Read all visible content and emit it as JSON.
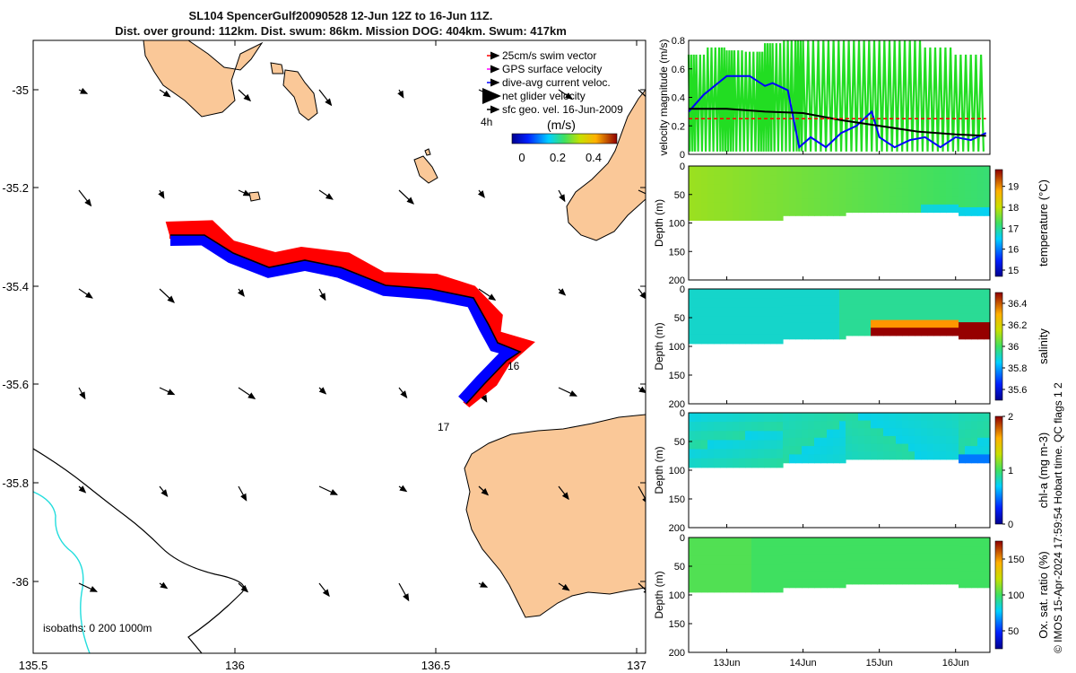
{
  "title": {
    "line1": "SL104 SpencerGulf20090528 12-Jun 12Z to 16-Jun 11Z.",
    "line2": "Dist. over ground: 112km. Dist. swum: 86km. Mission DOG: 404km. Swum: 417km"
  },
  "colors": {
    "land": "#fac898",
    "sea": "#ffffff",
    "track_red": "#ff0000",
    "track_blue": "#0000ff",
    "net_green": "#22dd22",
    "isobath_black": "#000000",
    "isobath_cyan": "#22dddd"
  },
  "map": {
    "xticks": [
      "135.5",
      "136",
      "136.5",
      "137"
    ],
    "yticks": [
      "-35",
      "-35.2",
      "-35.4",
      "-35.6",
      "-35.8",
      "-36"
    ],
    "legend": [
      {
        "label": "25cm/s swim vector",
        "color": "#ff0000"
      },
      {
        "label": "GPS surface velocity",
        "color": "#ff00ff"
      },
      {
        "label": "dive-avg current veloc.",
        "color": "#0000ff"
      },
      {
        "label": "net glider velocity",
        "color": "#22dd22"
      },
      {
        "label": "sfc geo. vel. 16-Jun-2009",
        "color": "#000000"
      }
    ],
    "scale_label": "4h",
    "colorbar_title": "(m/s)",
    "colorbar_ticks": [
      "0",
      "0.2",
      "0.4"
    ],
    "day_labels": [
      "16",
      "17"
    ],
    "isobaths_label": "isobaths: 0   200  1000m"
  },
  "chart_data": [
    {
      "type": "line",
      "title": "",
      "xlabel": "",
      "ylabel": "velocity magnitude (m/s)",
      "ylim": [
        0,
        0.8
      ],
      "yticks": [
        "0",
        "0.2",
        "0.4",
        "0.6",
        "0.8"
      ],
      "series": [
        {
          "name": "net glider velocity",
          "x": [
            12.5,
            12.6,
            12.75,
            12.9,
            13.0,
            13.1,
            13.25,
            13.4,
            13.5,
            13.6,
            13.75,
            13.9,
            14.0,
            14.2,
            14.4,
            14.6,
            14.8,
            15.0,
            15.2,
            15.4,
            15.6,
            15.8,
            16.0,
            16.2,
            16.4
          ],
          "values": [
            0.05,
            0.7,
            0.02,
            0.75,
            0.08,
            0.73,
            0.02,
            0.72,
            0.05,
            0.78,
            0.03,
            0.8,
            0.02,
            0.8,
            0.03,
            0.8,
            0.02,
            0.8,
            0.03,
            0.8,
            0.05,
            0.75,
            0.02,
            0.7,
            0.6
          ]
        },
        {
          "name": "dive-avg current veloc.",
          "x": [
            12.5,
            12.7,
            13.0,
            13.3,
            13.5,
            13.6,
            13.8,
            13.95,
            14.1,
            14.3,
            14.5,
            14.7,
            14.9,
            15.0,
            15.2,
            15.4,
            15.6,
            15.8,
            16.0,
            16.2,
            16.4
          ],
          "values": [
            0.3,
            0.42,
            0.55,
            0.55,
            0.48,
            0.5,
            0.45,
            0.05,
            0.12,
            0.05,
            0.15,
            0.2,
            0.3,
            0.12,
            0.05,
            0.1,
            0.12,
            0.05,
            0.12,
            0.1,
            0.15
          ]
        },
        {
          "name": "sfc geo. vel.",
          "x": [
            12.5,
            13.0,
            13.5,
            14.0,
            14.5,
            15.0,
            15.5,
            16.0,
            16.4
          ],
          "values": [
            0.32,
            0.32,
            0.3,
            0.29,
            0.24,
            0.2,
            0.16,
            0.14,
            0.13
          ]
        },
        {
          "name": "25cm/s swim vector",
          "x": [
            12.5,
            16.4
          ],
          "values": [
            0.25,
            0.25
          ]
        }
      ]
    },
    {
      "type": "heatmap",
      "ylabel": "Depth (m)",
      "ylim": [
        0,
        200
      ],
      "yticks": [
        "0",
        "50",
        "100",
        "150",
        "200"
      ],
      "colorbar_label": "temperature (°C)",
      "colorbar_ticks": [
        "15",
        "16",
        "17",
        "18",
        "19"
      ],
      "clim": [
        14.7,
        19.8
      ]
    },
    {
      "type": "heatmap",
      "ylabel": "Depth (m)",
      "ylim": [
        0,
        200
      ],
      "yticks": [
        "0",
        "50",
        "100",
        "150",
        "200"
      ],
      "colorbar_label": "salinity",
      "colorbar_ticks": [
        "35.6",
        "35.8",
        "36",
        "36.2",
        "36.4"
      ],
      "clim": [
        35.5,
        36.5
      ]
    },
    {
      "type": "heatmap",
      "ylabel": "Depth (m)",
      "ylim": [
        0,
        200
      ],
      "yticks": [
        "0",
        "50",
        "100",
        "150",
        "200"
      ],
      "colorbar_label": "chl-a (mg m-3)",
      "colorbar_ticks": [
        "0",
        "1",
        "2"
      ],
      "clim": [
        0,
        2
      ]
    },
    {
      "type": "heatmap",
      "ylabel": "Depth (m)",
      "ylim": [
        0,
        200
      ],
      "yticks": [
        "0",
        "50",
        "100",
        "150",
        "200"
      ],
      "colorbar_label": "Ox. sat. ratio (%)",
      "colorbar_ticks": [
        "50",
        "100",
        "150"
      ],
      "clim": [
        25,
        175
      ]
    }
  ],
  "time_axis": {
    "ticks": [
      "13Jun",
      "14Jun",
      "15Jun",
      "16Jun"
    ]
  },
  "footer": "© IMOS 15-Apr-2024 17:59:54 Hobart time. QC flags 1  2"
}
